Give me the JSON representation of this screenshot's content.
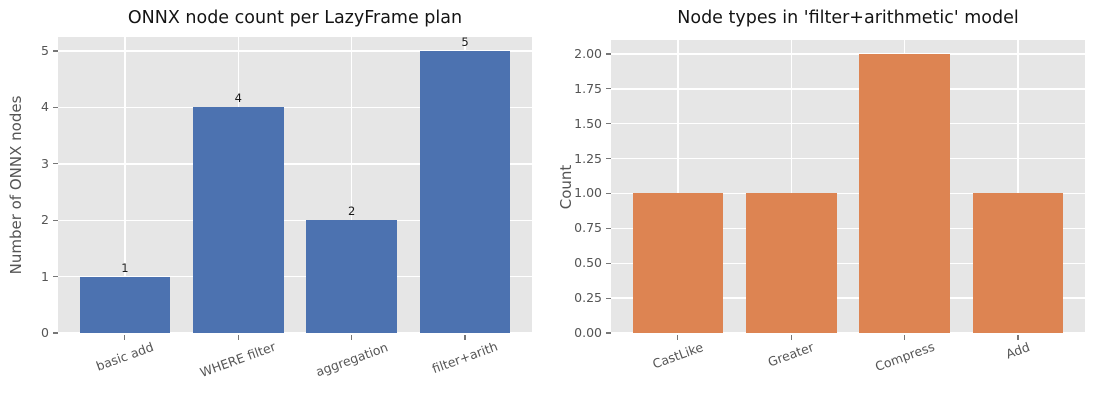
{
  "style": {
    "figure_bg": "#ffffff",
    "plot_bg": "#e6e6e6",
    "grid_color": "#ffffff",
    "tick_text_color": "#555555",
    "title_color": "#141414",
    "bar_label_color": "#1a1a1a"
  },
  "chart_data": [
    {
      "type": "bar",
      "title": "ONNX node count per LazyFrame plan",
      "xlabel": "",
      "ylabel": "Number of ONNX nodes",
      "categories": [
        "basic add",
        "WHERE filter",
        "aggregation",
        "filter+arith"
      ],
      "values": [
        1,
        4,
        2,
        5
      ],
      "bar_labels": [
        "1",
        "4",
        "2",
        "5"
      ],
      "bar_color": "#4C72B0",
      "ylim": [
        0,
        5.25
      ],
      "yticks": [
        0,
        1,
        2,
        3,
        4,
        5
      ],
      "ytick_labels": [
        "0",
        "1",
        "2",
        "3",
        "4",
        "5"
      ],
      "xtick_rotation_deg": 20,
      "grid": true,
      "legend": null
    },
    {
      "type": "bar",
      "title": "Node types in 'filter+arithmetic' model",
      "xlabel": "",
      "ylabel": "Count",
      "categories": [
        "CastLike",
        "Greater",
        "Compress",
        "Add"
      ],
      "values": [
        1,
        1,
        2,
        1
      ],
      "bar_labels": null,
      "bar_color": "#DD8452",
      "ylim": [
        0,
        2.1
      ],
      "yticks": [
        0,
        0.25,
        0.5,
        0.75,
        1,
        1.25,
        1.5,
        1.75,
        2
      ],
      "ytick_labels": [
        "0.00",
        "0.25",
        "0.50",
        "0.75",
        "1.00",
        "1.25",
        "1.50",
        "1.75",
        "2.00"
      ],
      "xtick_rotation_deg": 20,
      "grid": true,
      "legend": null
    }
  ]
}
